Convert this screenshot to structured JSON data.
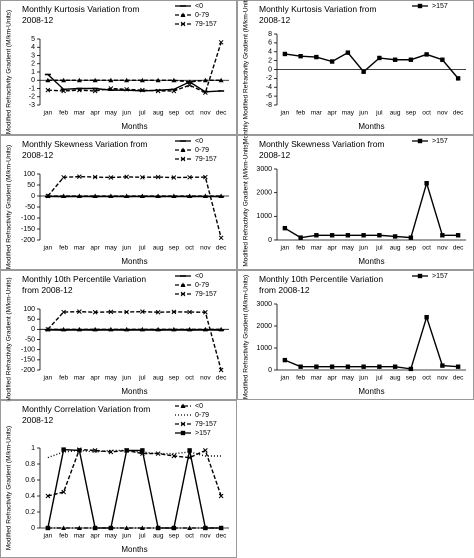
{
  "chart_data": [
    {
      "type": "line",
      "title": "Monthly Kurtosis Variation from 2008-12",
      "x_label": "Months",
      "y_label": "Modified Refractivity Gradient (M/km-Units)",
      "categories": [
        "jan",
        "feb",
        "mar",
        "apr",
        "may",
        "jun",
        "jul",
        "aug",
        "sep",
        "oct",
        "nov",
        "dec"
      ],
      "ylim": [
        -3,
        5
      ],
      "yticks": [
        -3,
        -2,
        -1,
        0,
        1,
        2,
        3,
        4,
        5
      ],
      "legend": "top-right",
      "series": [
        {
          "name": "<0",
          "color": "#000000",
          "dash": "solid",
          "marker": "dash",
          "values": [
            0.7,
            -1.1,
            -1.0,
            -1.0,
            -1.2,
            -1.2,
            -1.3,
            -1.2,
            -1.1,
            -0.2,
            -1.4,
            -1.3
          ]
        },
        {
          "name": "0-79",
          "color": "#000000",
          "dash": "dashed",
          "marker": "triangle",
          "values": [
            0,
            0,
            0,
            0,
            0,
            0,
            0,
            0,
            0,
            -0.2,
            0,
            0
          ]
        },
        {
          "name": "79-157",
          "color": "#000000",
          "dash": "dashed",
          "marker": "x",
          "values": [
            -1.2,
            -1.3,
            -1.2,
            -1.3,
            -1.0,
            -1.1,
            -1.2,
            -1.3,
            -1.3,
            -0.6,
            -1.5,
            4.6
          ]
        }
      ]
    },
    {
      "type": "line",
      "title": "Monthly Kurtosis Variation from 2008-12",
      "x_label": "Months",
      "y_label": "Monthly Modified Refractivity Gradient (M/km-Units)",
      "categories": [
        "jan",
        "feb",
        "mar",
        "apr",
        "may",
        "jun",
        "jul",
        "aug",
        "sep",
        "oct",
        "nov",
        "dec"
      ],
      "ylim": [
        -8,
        8
      ],
      "yticks": [
        -8,
        -6,
        -4,
        -2,
        0,
        2,
        4,
        6,
        8
      ],
      "legend": "top-right",
      "series": [
        {
          "name": ">157",
          "color": "#000000",
          "dash": "solid",
          "marker": "square",
          "values": [
            3.5,
            3,
            2.8,
            1.8,
            3.8,
            -0.5,
            2.6,
            2.2,
            2.2,
            3.4,
            2.2,
            -2
          ]
        }
      ]
    },
    {
      "type": "line",
      "title": "Monthly Skewness Variation from 2008-12",
      "x_label": "Months",
      "y_label": "Modified Refractivity Gradient (M/km-Units)",
      "categories": [
        "jan",
        "feb",
        "mar",
        "apr",
        "may",
        "jun",
        "jul",
        "aug",
        "sep",
        "oct",
        "nov",
        "dec"
      ],
      "ylim": [
        -200,
        100
      ],
      "yticks": [
        -200,
        -150,
        -100,
        -50,
        0,
        50,
        100
      ],
      "legend": "top-right",
      "series": [
        {
          "name": "<0",
          "color": "#000000",
          "dash": "solid",
          "marker": "dash",
          "values": [
            -2,
            -3,
            -2,
            -3,
            -2,
            -3,
            -2,
            -3,
            -2,
            -3,
            -2,
            -3
          ]
        },
        {
          "name": "0-79",
          "color": "#000000",
          "dash": "dashed",
          "marker": "triangle",
          "values": [
            0,
            0,
            0,
            0,
            0,
            0,
            0,
            0,
            0,
            0,
            0,
            0
          ]
        },
        {
          "name": "79-157",
          "color": "#000000",
          "dash": "dashed",
          "marker": "x",
          "values": [
            0,
            85,
            88,
            86,
            84,
            87,
            85,
            86,
            84,
            85,
            86,
            -190
          ]
        }
      ]
    },
    {
      "type": "line",
      "title": "Monthly Skewness Variation from 2008-12",
      "x_label": "Months",
      "y_label": "Modified Refractivity Gradient (M/km-Units)",
      "categories": [
        "jan",
        "feb",
        "mar",
        "apr",
        "may",
        "jun",
        "jul",
        "aug",
        "sep",
        "oct",
        "nov",
        "dec"
      ],
      "ylim": [
        0,
        3000
      ],
      "yticks": [
        0,
        1000,
        2000,
        3000
      ],
      "legend": "top-right",
      "series": [
        {
          "name": ">157",
          "color": "#000000",
          "dash": "solid",
          "marker": "square",
          "values": [
            500,
            100,
            200,
            200,
            200,
            200,
            200,
            150,
            100,
            2400,
            200,
            200
          ]
        }
      ]
    },
    {
      "type": "line",
      "title": "Monthly 10th Percentile Variation from 2008-12",
      "x_label": "Months",
      "y_label": "Modified Refractivity Gradient (M/km-Units)",
      "categories": [
        "jan",
        "feb",
        "mar",
        "apr",
        "may",
        "jun",
        "jul",
        "aug",
        "sep",
        "oct",
        "nov",
        "dec"
      ],
      "ylim": [
        -200,
        100
      ],
      "yticks": [
        -200,
        -150,
        -100,
        -50,
        0,
        50,
        100
      ],
      "legend": "top-right",
      "series": [
        {
          "name": "<0",
          "color": "#000000",
          "dash": "solid",
          "marker": "dash",
          "values": [
            -3,
            -4,
            -3,
            -4,
            -3,
            -4,
            -3,
            -4,
            -3,
            -4,
            -3,
            -4
          ]
        },
        {
          "name": "0-79",
          "color": "#000000",
          "dash": "dashed",
          "marker": "triangle",
          "values": [
            0,
            0,
            0,
            0,
            0,
            0,
            0,
            0,
            0,
            0,
            0,
            0
          ]
        },
        {
          "name": "79-157",
          "color": "#000000",
          "dash": "dashed",
          "marker": "x",
          "values": [
            0,
            85,
            87,
            84,
            86,
            85,
            87,
            84,
            86,
            85,
            84,
            -200
          ]
        }
      ]
    },
    {
      "type": "line",
      "title": "Monthly 10th Percentile Variation from 2008-12",
      "x_label": "Months",
      "y_label": "Modified Refractivity Gradient (M/km-Units)",
      "categories": [
        "jan",
        "feb",
        "mar",
        "apr",
        "may",
        "jun",
        "jul",
        "aug",
        "sep",
        "oct",
        "nov",
        "dec"
      ],
      "ylim": [
        0,
        3000
      ],
      "yticks": [
        0,
        1000,
        2000,
        3000
      ],
      "legend": "top-right",
      "series": [
        {
          "name": ">157",
          "color": "#000000",
          "dash": "solid",
          "marker": "square",
          "values": [
            450,
            150,
            150,
            150,
            150,
            150,
            150,
            150,
            50,
            2400,
            200,
            150
          ]
        }
      ]
    },
    {
      "type": "line",
      "title": "Monthly Correlation Variation from 2008-12",
      "x_label": "Months",
      "y_label": "Modified Refractivity Gradient (M/km-Units)",
      "categories": [
        "jan",
        "feb",
        "mar",
        "apr",
        "may",
        "jun",
        "jul",
        "aug",
        "sep",
        "oct",
        "nov",
        "dec"
      ],
      "ylim": [
        0,
        1
      ],
      "yticks": [
        0,
        0.2,
        0.4,
        0.6,
        0.8,
        1
      ],
      "legend": "top-right",
      "series": [
        {
          "name": "<0",
          "color": "#000000",
          "dash": "dashdot",
          "marker": "triangle",
          "values": [
            0,
            0,
            0,
            0,
            0,
            0,
            0,
            0,
            0,
            0,
            0,
            0
          ]
        },
        {
          "name": "0-79",
          "color": "#000000",
          "dash": "dotted",
          "marker": "none",
          "values": [
            0.88,
            0.95,
            0.97,
            0.95,
            0.97,
            0.97,
            0.95,
            0.93,
            0.93,
            0.95,
            0.9,
            0.9
          ]
        },
        {
          "name": "79-157",
          "color": "#000000",
          "dash": "dashed",
          "marker": "x",
          "values": [
            0.4,
            0.45,
            0.98,
            0.97,
            0.95,
            0.97,
            0.93,
            0.93,
            0.9,
            0.88,
            0.97,
            0.4
          ]
        },
        {
          "name": ">157",
          "color": "#000000",
          "dash": "solid",
          "marker": "square",
          "values": [
            0,
            0.98,
            0.97,
            0,
            0,
            0.97,
            0.97,
            0,
            0,
            0.97,
            0,
            0
          ]
        }
      ]
    }
  ]
}
